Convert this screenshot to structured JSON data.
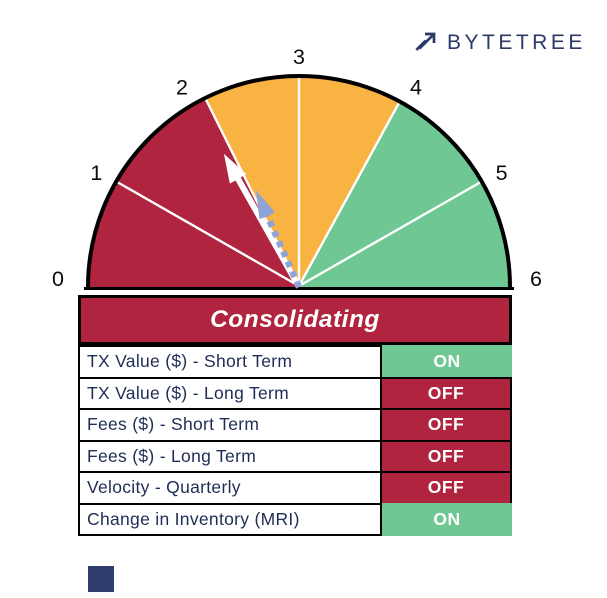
{
  "logo": {
    "brand": "BYTETREE",
    "icon": "arrow-up-right",
    "color": "#2B3A66"
  },
  "chart_data": {
    "type": "gauge",
    "title": "Consolidating",
    "range": [
      0,
      6
    ],
    "tick_labels": [
      "0",
      "1",
      "2",
      "3",
      "4",
      "5",
      "6"
    ],
    "segments": [
      {
        "name": "red",
        "from": 0,
        "to": 2.12,
        "color": "#B0243F"
      },
      {
        "name": "amber",
        "from": 2.12,
        "to": 3.95,
        "color": "#F8B343"
      },
      {
        "name": "green",
        "from": 3.95,
        "to": 6,
        "color": "#6FC893"
      }
    ],
    "dividers": [
      1,
      2.12,
      3,
      3.95,
      5
    ],
    "needles": [
      {
        "name": "current-needle",
        "style": "solid",
        "color": "#FFFFFF",
        "value": 2.02
      },
      {
        "name": "trend-needle",
        "style": "dashed",
        "color": "#8FA4D6",
        "value": 2.2
      }
    ],
    "legend_position": "none",
    "grid": false
  },
  "status_banner": {
    "label": "Consolidating",
    "background": "#B0243F",
    "text_color": "#FFFFFF"
  },
  "indicator_table": {
    "on_color": "#6FC893",
    "off_color": "#B0243F",
    "text_color": "#1F2C55",
    "rows": [
      {
        "label": "TX Value ($) - Short Term",
        "state": "ON"
      },
      {
        "label": "TX Value ($) - Long Term",
        "state": "OFF"
      },
      {
        "label": "Fees ($) - Short Term",
        "state": "OFF"
      },
      {
        "label": "Fees ($) - Long Term",
        "state": "OFF"
      },
      {
        "label": "Velocity - Quarterly",
        "state": "OFF"
      },
      {
        "label": "Change in Inventory (MRI)",
        "state": "ON"
      }
    ]
  },
  "footer_mark": {
    "color": "#2F3E6E"
  }
}
